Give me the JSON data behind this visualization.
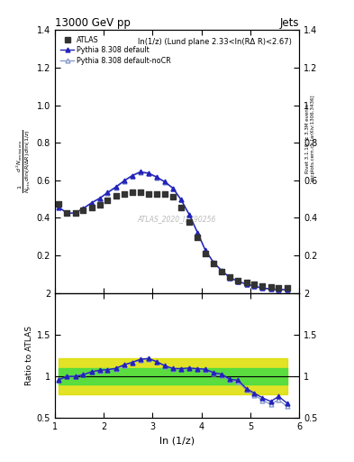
{
  "title": "13000 GeV pp",
  "title_right": "Jets",
  "annotation": "ln(1/z) (Lund plane 2.33<ln(RΔ R)<2.67)",
  "watermark": "ATLAS_2020_I1790256",
  "xlabel": "ln (1/z)",
  "ylabel_ratio": "Ratio to ATLAS",
  "right_label": "Rivet 3.1.10, ≥ 3.3M events",
  "right_label2": "mcplots.cern.ch [arXiv:1306.3436]",
  "ylim_main": [
    0.0,
    1.4
  ],
  "ylim_ratio": [
    0.5,
    2.0
  ],
  "xlim": [
    1.0,
    6.0
  ],
  "atlas_x": [
    1.08,
    1.25,
    1.42,
    1.58,
    1.75,
    1.92,
    2.08,
    2.25,
    2.42,
    2.58,
    2.75,
    2.92,
    3.08,
    3.25,
    3.42,
    3.58,
    3.75,
    3.92,
    4.08,
    4.25,
    4.42,
    4.58,
    4.75,
    4.92,
    5.08,
    5.25,
    5.42,
    5.58,
    5.75
  ],
  "atlas_y": [
    0.475,
    0.425,
    0.425,
    0.44,
    0.455,
    0.47,
    0.495,
    0.515,
    0.525,
    0.535,
    0.535,
    0.525,
    0.525,
    0.525,
    0.51,
    0.455,
    0.38,
    0.295,
    0.21,
    0.155,
    0.115,
    0.085,
    0.065,
    0.055,
    0.045,
    0.035,
    0.03,
    0.025,
    0.025
  ],
  "pythia_default_x": [
    1.08,
    1.25,
    1.42,
    1.58,
    1.75,
    1.92,
    2.08,
    2.25,
    2.42,
    2.58,
    2.75,
    2.92,
    3.08,
    3.25,
    3.42,
    3.58,
    3.75,
    3.92,
    4.08,
    4.25,
    4.42,
    4.58,
    4.75,
    4.92,
    5.08,
    5.25,
    5.42,
    5.58,
    5.75
  ],
  "pythia_default_y": [
    0.455,
    0.425,
    0.425,
    0.45,
    0.48,
    0.505,
    0.535,
    0.565,
    0.598,
    0.625,
    0.645,
    0.638,
    0.618,
    0.592,
    0.558,
    0.498,
    0.418,
    0.322,
    0.228,
    0.162,
    0.118,
    0.082,
    0.062,
    0.047,
    0.036,
    0.026,
    0.021,
    0.019,
    0.017
  ],
  "pythia_nocr_x": [
    1.08,
    1.25,
    1.42,
    1.58,
    1.75,
    1.92,
    2.08,
    2.25,
    2.42,
    2.58,
    2.75,
    2.92,
    3.08,
    3.25,
    3.42,
    3.58,
    3.75,
    3.92,
    4.08,
    4.25,
    4.42,
    4.58,
    4.75,
    4.92,
    5.08,
    5.25,
    5.42,
    5.58,
    5.75
  ],
  "pythia_nocr_y": [
    0.458,
    0.425,
    0.425,
    0.45,
    0.478,
    0.503,
    0.532,
    0.562,
    0.595,
    0.622,
    0.642,
    0.635,
    0.615,
    0.59,
    0.555,
    0.496,
    0.416,
    0.32,
    0.226,
    0.16,
    0.116,
    0.081,
    0.061,
    0.046,
    0.035,
    0.025,
    0.02,
    0.018,
    0.016
  ],
  "ratio_default_y": [
    0.96,
    1.0,
    1.0,
    1.02,
    1.055,
    1.074,
    1.08,
    1.097,
    1.14,
    1.168,
    1.205,
    1.215,
    1.178,
    1.128,
    1.094,
    1.093,
    1.1,
    1.092,
    1.086,
    1.045,
    1.026,
    0.965,
    0.954,
    0.855,
    0.8,
    0.743,
    0.7,
    0.76,
    0.68
  ],
  "ratio_nocr_y": [
    0.963,
    1.0,
    1.0,
    1.023,
    1.052,
    1.07,
    1.075,
    1.093,
    1.133,
    1.163,
    1.2,
    1.21,
    1.173,
    1.124,
    1.088,
    1.088,
    1.094,
    1.085,
    1.077,
    1.032,
    1.009,
    0.953,
    0.938,
    0.836,
    0.778,
    0.714,
    0.667,
    0.72,
    0.64
  ],
  "band_yellow_lo": [
    0.78,
    0.78,
    0.78,
    0.78,
    0.78,
    0.78,
    0.78,
    0.78,
    0.78,
    0.78,
    0.78,
    0.78,
    0.78,
    0.78,
    0.78,
    0.78,
    0.78,
    0.78,
    0.78,
    0.78,
    0.78,
    0.78,
    0.78,
    0.78,
    0.78,
    0.78,
    0.78,
    0.78,
    0.78
  ],
  "band_yellow_hi": [
    1.22,
    1.22,
    1.22,
    1.22,
    1.22,
    1.22,
    1.22,
    1.22,
    1.22,
    1.22,
    1.22,
    1.22,
    1.22,
    1.22,
    1.22,
    1.22,
    1.22,
    1.22,
    1.22,
    1.22,
    1.22,
    1.22,
    1.22,
    1.22,
    1.22,
    1.22,
    1.22,
    1.22,
    1.22
  ],
  "band_green_lo": [
    0.9,
    0.9,
    0.9,
    0.9,
    0.9,
    0.9,
    0.9,
    0.9,
    0.9,
    0.9,
    0.9,
    0.9,
    0.9,
    0.9,
    0.9,
    0.9,
    0.9,
    0.9,
    0.9,
    0.9,
    0.9,
    0.9,
    0.9,
    0.9,
    0.9,
    0.9,
    0.9,
    0.9,
    0.9
  ],
  "band_green_hi": [
    1.1,
    1.1,
    1.1,
    1.1,
    1.1,
    1.1,
    1.1,
    1.1,
    1.1,
    1.1,
    1.1,
    1.1,
    1.1,
    1.1,
    1.1,
    1.1,
    1.1,
    1.1,
    1.1,
    1.1,
    1.1,
    1.1,
    1.1,
    1.1,
    1.1,
    1.1,
    1.1,
    1.1,
    1.1
  ],
  "color_atlas": "#333333",
  "color_default": "#2222bb",
  "color_nocr": "#8899cc",
  "color_green": "#44dd44",
  "color_yellow": "#dddd00",
  "yticks_main": [
    0.2,
    0.4,
    0.6,
    0.8,
    1.0,
    1.2,
    1.4
  ],
  "yticks_ratio": [
    0.5,
    1.0,
    1.5,
    2.0
  ]
}
